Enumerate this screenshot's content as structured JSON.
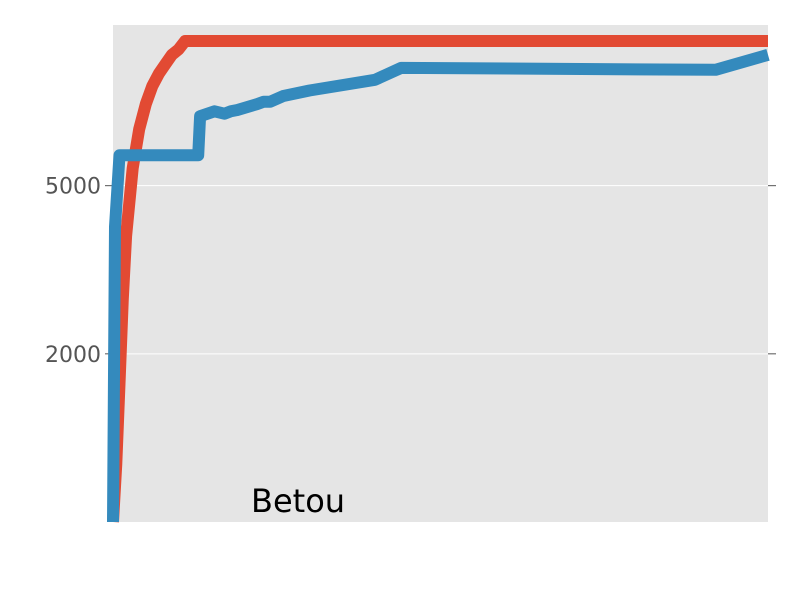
{
  "chart_data": {
    "type": "line",
    "title": "",
    "xlabel": "",
    "ylabel": "",
    "annotation": "Betou",
    "ylim": [
      800,
      12000
    ],
    "grid": true,
    "colors": {
      "background": "#e5e5e5",
      "grid": "#ffffff"
    },
    "y_ticks": [
      {
        "value": 2000,
        "label": "2000"
      },
      {
        "value": 5000,
        "label": "5000"
      }
    ],
    "series": [
      {
        "color": "#e24a33",
        "points": [
          [
            0,
            800
          ],
          [
            0.5,
            1100
          ],
          [
            1,
            1700
          ],
          [
            1.5,
            2700
          ],
          [
            2,
            3800
          ],
          [
            3,
            5500
          ],
          [
            4,
            6800
          ],
          [
            5,
            7800
          ],
          [
            6,
            8600
          ],
          [
            7,
            9200
          ],
          [
            8,
            9700
          ],
          [
            9,
            10200
          ],
          [
            10,
            10500
          ],
          [
            11,
            11000
          ],
          [
            12,
            11000
          ],
          [
            100,
            11000
          ]
        ]
      },
      {
        "color": "#348abd",
        "points": [
          [
            0,
            800
          ],
          [
            0.3,
            4000
          ],
          [
            1,
            5900
          ],
          [
            13,
            5900
          ],
          [
            13.3,
            7300
          ],
          [
            15.5,
            7500
          ],
          [
            17,
            7400
          ],
          [
            18,
            7500
          ],
          [
            19,
            7550
          ],
          [
            22,
            7800
          ],
          [
            23,
            7900
          ],
          [
            24,
            7900
          ],
          [
            26,
            8150
          ],
          [
            30,
            8400
          ],
          [
            40,
            8900
          ],
          [
            44,
            9500
          ],
          [
            92,
            9400
          ],
          [
            100,
            10200
          ]
        ]
      }
    ]
  }
}
